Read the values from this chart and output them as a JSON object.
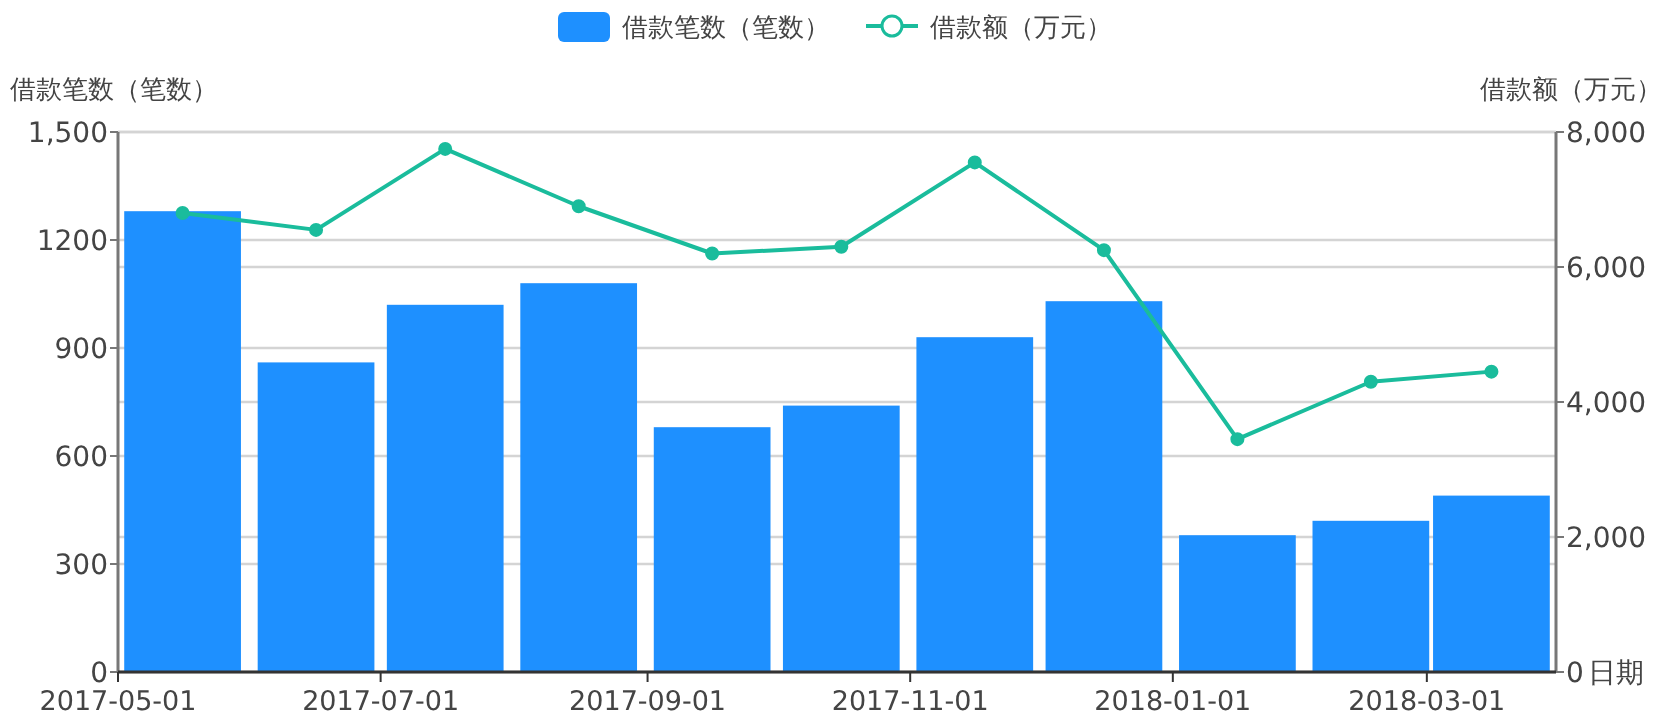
{
  "chart_data": {
    "type": "bar",
    "xlabel": "日期",
    "ylabel": "借款笔数（笔数）",
    "y2label": "借款额（万元）",
    "x": [
      "2017-05-16",
      "2017-06-16",
      "2017-07-16",
      "2017-08-16",
      "2017-09-16",
      "2017-10-16",
      "2017-11-16",
      "2017-12-16",
      "2018-01-16",
      "2018-02-16",
      "2018-03-16"
    ],
    "xlim": [
      "2017-05-01",
      "2018-03-31"
    ],
    "xticks": [
      {
        "value": "2017-05-01",
        "label": "2017-05-01"
      },
      {
        "value": "2017-07-01",
        "label": "2017-07-01"
      },
      {
        "value": "2017-09-01",
        "label": "2017-09-01"
      },
      {
        "value": "2017-11-01",
        "label": "2017-11-01"
      },
      {
        "value": "2018-01-01",
        "label": "2018-01-01"
      },
      {
        "value": "2018-03-01",
        "label": "2018-03-01"
      }
    ],
    "series": [
      {
        "name": "借款笔数（笔数）",
        "color": "#1e90ff",
        "values": [
          1280,
          860,
          1020,
          1080,
          680,
          740,
          930,
          1030,
          380,
          420,
          490
        ]
      },
      {
        "name": "借款额（万元）",
        "type": "line",
        "axis": "y2",
        "color": "#1abc9c",
        "marker": "circle",
        "values": [
          6800,
          6550,
          7750,
          6900,
          6200,
          6300,
          7550,
          6250,
          3450,
          4300,
          4450
        ]
      }
    ],
    "ylim": [
      0,
      1500
    ],
    "yticks": [
      0,
      300,
      600,
      900,
      1200,
      {
        "value": 1500,
        "label": "1,500"
      }
    ],
    "y2lim": [
      0,
      8000
    ],
    "y2ticks": [
      0,
      {
        "value": 2000,
        "label": "2,000"
      },
      {
        "value": 4000,
        "label": "4,000"
      },
      {
        "value": 6000,
        "label": "6,000"
      },
      {
        "value": 8000,
        "label": "8,000"
      }
    ],
    "grid": "y",
    "legend": "top"
  }
}
